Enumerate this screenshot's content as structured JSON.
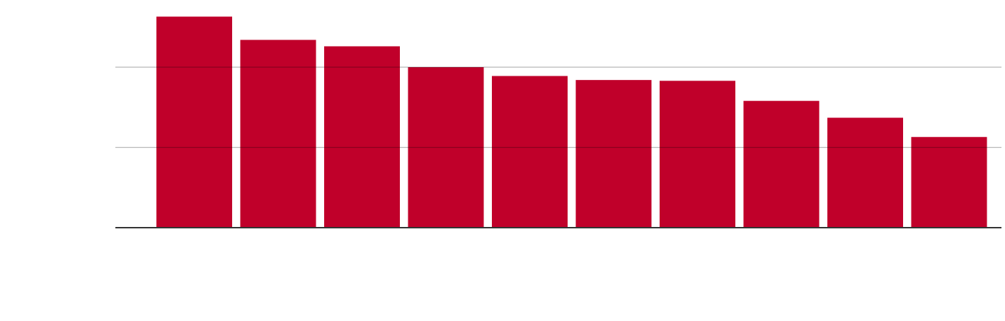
{
  "chart_data": {
    "type": "bar",
    "categories": [
      null,
      null,
      null,
      null,
      null,
      null,
      null,
      null,
      null,
      null
    ],
    "values": [
      2.63,
      2.34,
      2.26,
      2.0,
      1.89,
      1.84,
      1.83,
      1.58,
      1.37,
      1.13
    ],
    "color": "#c0002a",
    "ylim": [
      0,
      2.8
    ],
    "yticks": [
      0,
      1,
      2
    ],
    "grid": true
  }
}
